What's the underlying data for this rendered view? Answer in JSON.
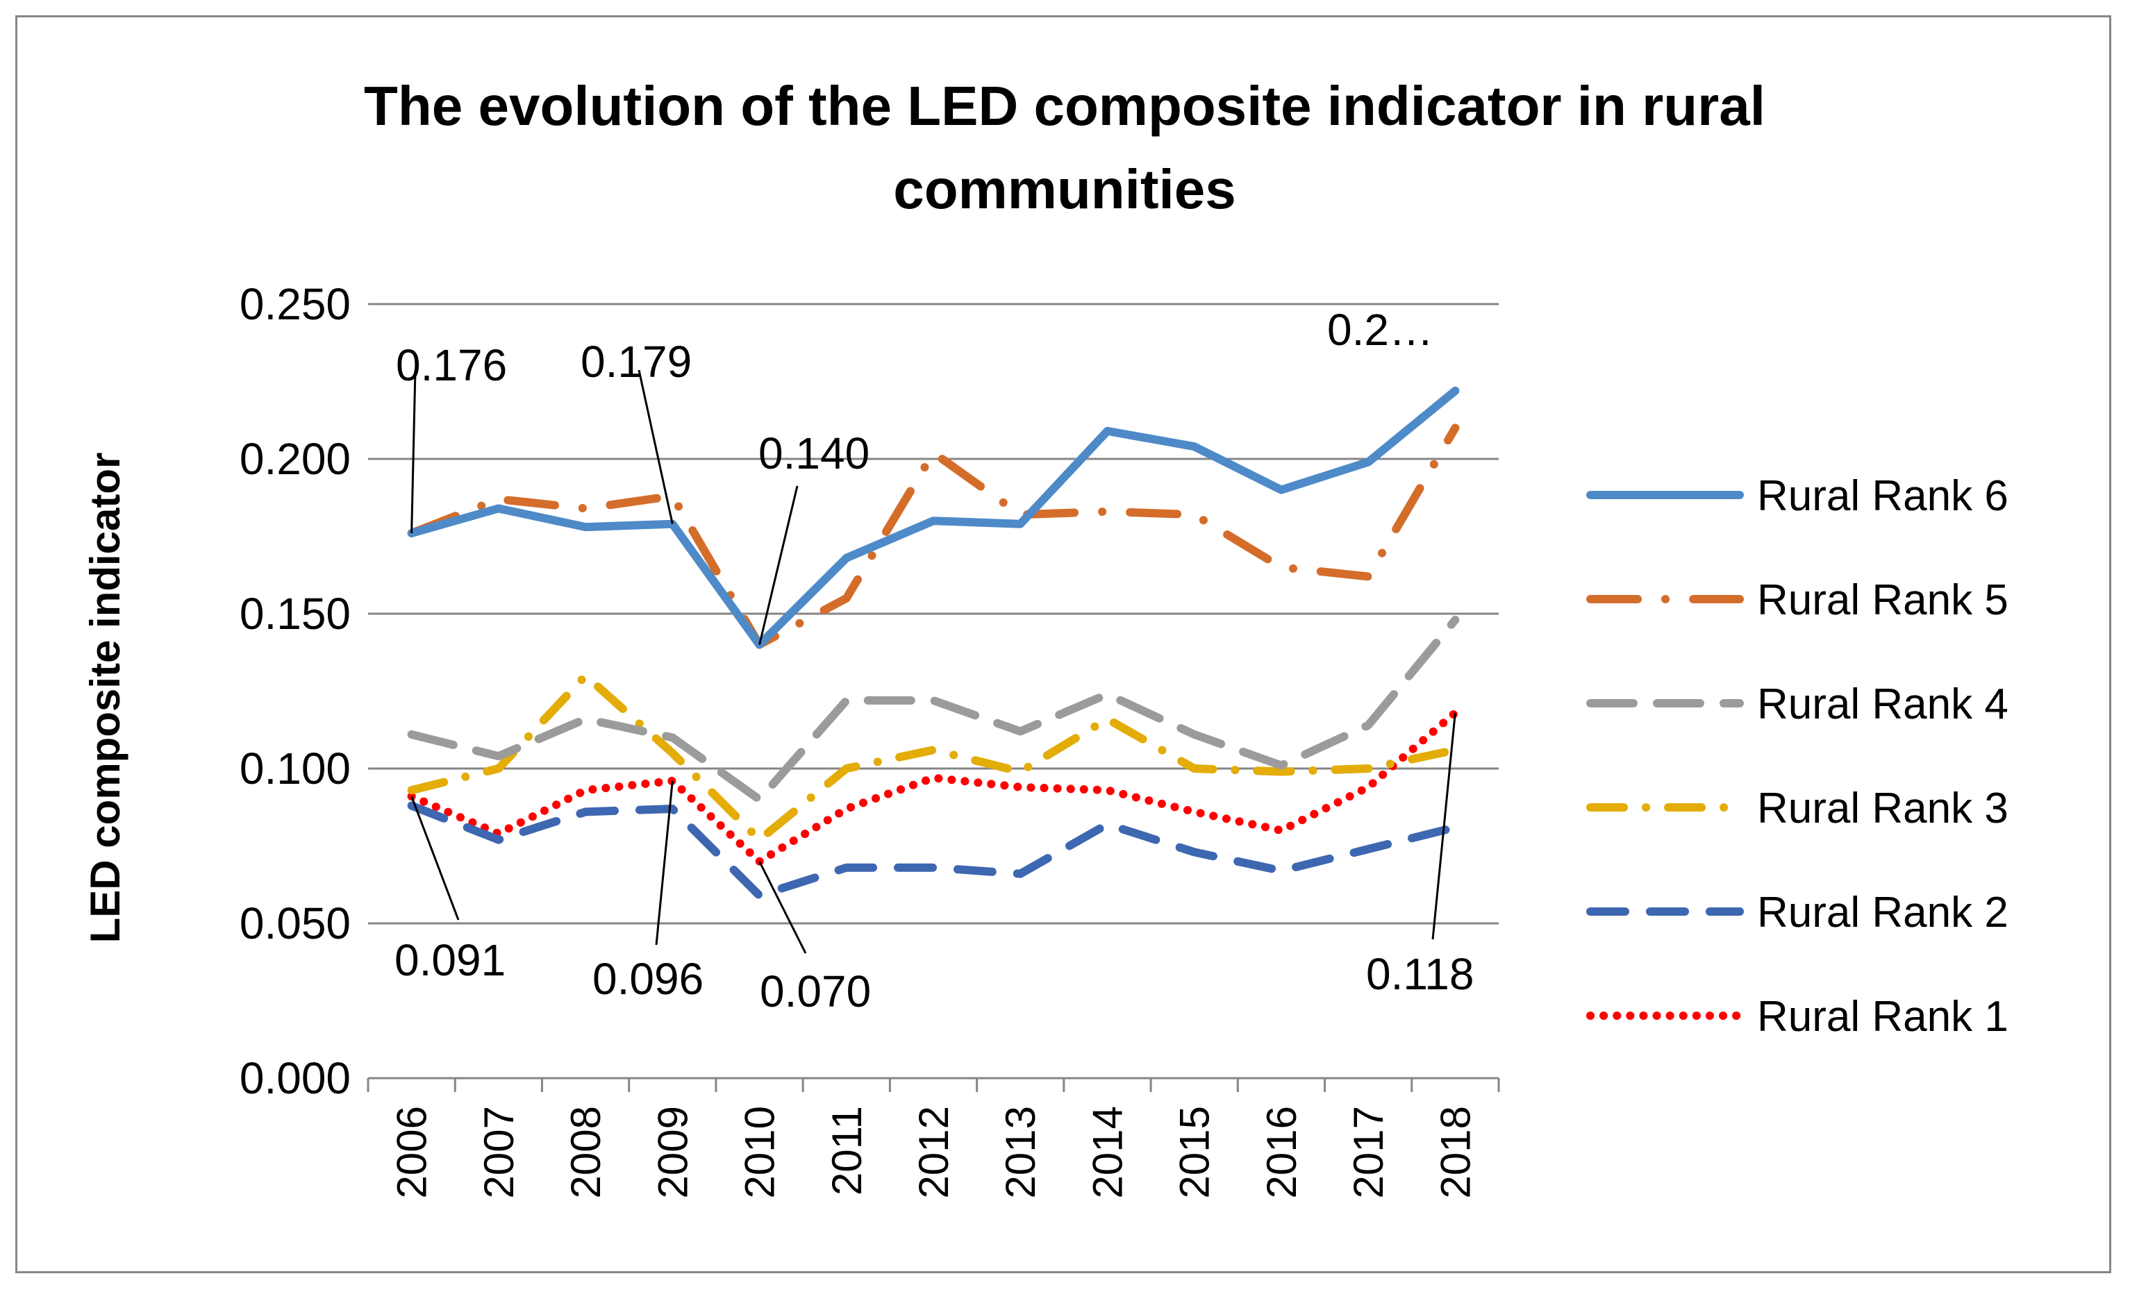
{
  "chart_data": {
    "type": "line",
    "title_lines": [
      "The evolution of the LED composite indicator in rural",
      "communities"
    ],
    "xlabel": "",
    "ylabel": "LED composite indicator",
    "categories": [
      "2006",
      "2007",
      "2008",
      "2009",
      "2010",
      "2011",
      "2012",
      "2013",
      "2014",
      "2015",
      "2016",
      "2017",
      "2018"
    ],
    "ylim": [
      0,
      0.25
    ],
    "yticks": [
      "0.000",
      "0.050",
      "0.100",
      "0.150",
      "0.200",
      "0.250"
    ],
    "ytick_values": [
      0,
      0.05,
      0.1,
      0.15,
      0.2,
      0.25
    ],
    "grid": true,
    "legend_position": "right",
    "series": [
      {
        "name": "Rural Rank 6",
        "color": "#4E8AC8",
        "dash": "solid",
        "values": [
          0.176,
          0.184,
          0.178,
          0.179,
          0.14,
          0.168,
          0.18,
          0.179,
          0.209,
          0.204,
          0.19,
          0.199,
          0.222
        ]
      },
      {
        "name": "Rural Rank 5",
        "color": "#D46D2A",
        "dash": "longdashdot",
        "values": [
          0.176,
          0.187,
          0.184,
          0.188,
          0.14,
          0.155,
          0.202,
          0.182,
          0.183,
          0.182,
          0.165,
          0.162,
          0.21
        ]
      },
      {
        "name": "Rural Rank 4",
        "color": "#9B9B9B",
        "dash": "longdash",
        "values": [
          0.111,
          0.104,
          0.116,
          0.11,
          0.09,
          0.122,
          0.122,
          0.112,
          0.124,
          0.111,
          0.101,
          0.114,
          0.148
        ]
      },
      {
        "name": "Rural Rank 3",
        "color": "#E3AC06",
        "dash": "dashdot",
        "values": [
          0.093,
          0.1,
          0.13,
          0.105,
          0.077,
          0.1,
          0.106,
          0.099,
          0.116,
          0.1,
          0.099,
          0.1,
          0.106
        ]
      },
      {
        "name": "Rural Rank 2",
        "color": "#3E67B1",
        "dash": "dash",
        "values": [
          0.088,
          0.077,
          0.086,
          0.087,
          0.059,
          0.068,
          0.068,
          0.066,
          0.082,
          0.073,
          0.067,
          0.074,
          0.081
        ]
      },
      {
        "name": "Rural Rank 1",
        "color": "#FF0000",
        "dash": "dot",
        "values": [
          0.091,
          0.079,
          0.093,
          0.096,
          0.07,
          0.087,
          0.097,
          0.094,
          0.093,
          0.086,
          0.08,
          0.094,
          0.118
        ]
      }
    ],
    "annotations": [
      {
        "text": "0.176",
        "series": "Rural Rank 6",
        "year": "2006",
        "value": 0.176
      },
      {
        "text": "0.179",
        "series": "Rural Rank 6",
        "year": "2009",
        "value": 0.179
      },
      {
        "text": "0.140",
        "series": "Rural Rank 6",
        "year": "2010",
        "value": 0.14
      },
      {
        "text": "0.2…",
        "series": "Rural Rank 6",
        "year": "2018",
        "value": 0.222
      },
      {
        "text": "0.091",
        "series": "Rural Rank 1",
        "year": "2006",
        "value": 0.091
      },
      {
        "text": "0.096",
        "series": "Rural Rank 1",
        "year": "2009",
        "value": 0.096
      },
      {
        "text": "0.070",
        "series": "Rural Rank 1",
        "year": "2010",
        "value": 0.07
      },
      {
        "text": "0.118",
        "series": "Rural Rank 1",
        "year": "2018",
        "value": 0.118
      }
    ]
  }
}
